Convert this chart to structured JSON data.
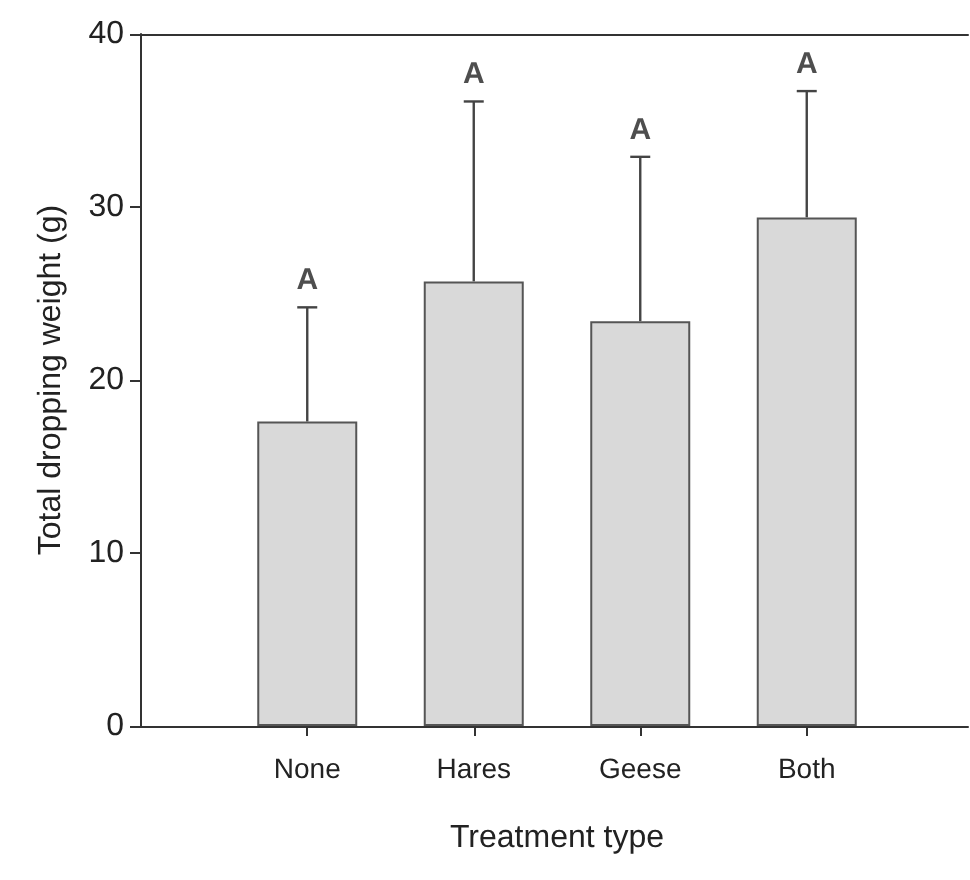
{
  "chart_data": {
    "type": "bar",
    "xlabel": "Treatment type",
    "ylabel": "Total dropping weight (g)",
    "categories": [
      "None",
      "Hares",
      "Geese",
      "Both"
    ],
    "values": [
      17.6,
      25.7,
      23.4,
      29.4
    ],
    "errors": [
      [
        17.6,
        24.2
      ],
      [
        25.7,
        36.1
      ],
      [
        23.4,
        32.9
      ],
      [
        29.4,
        36.7
      ]
    ],
    "color": "#d9d9d9",
    "ylim": [
      0,
      40
    ],
    "yticks": [
      0,
      10,
      20,
      30,
      40
    ],
    "annotations": [
      "A",
      "A",
      "A",
      "A"
    ],
    "grid": false
  }
}
